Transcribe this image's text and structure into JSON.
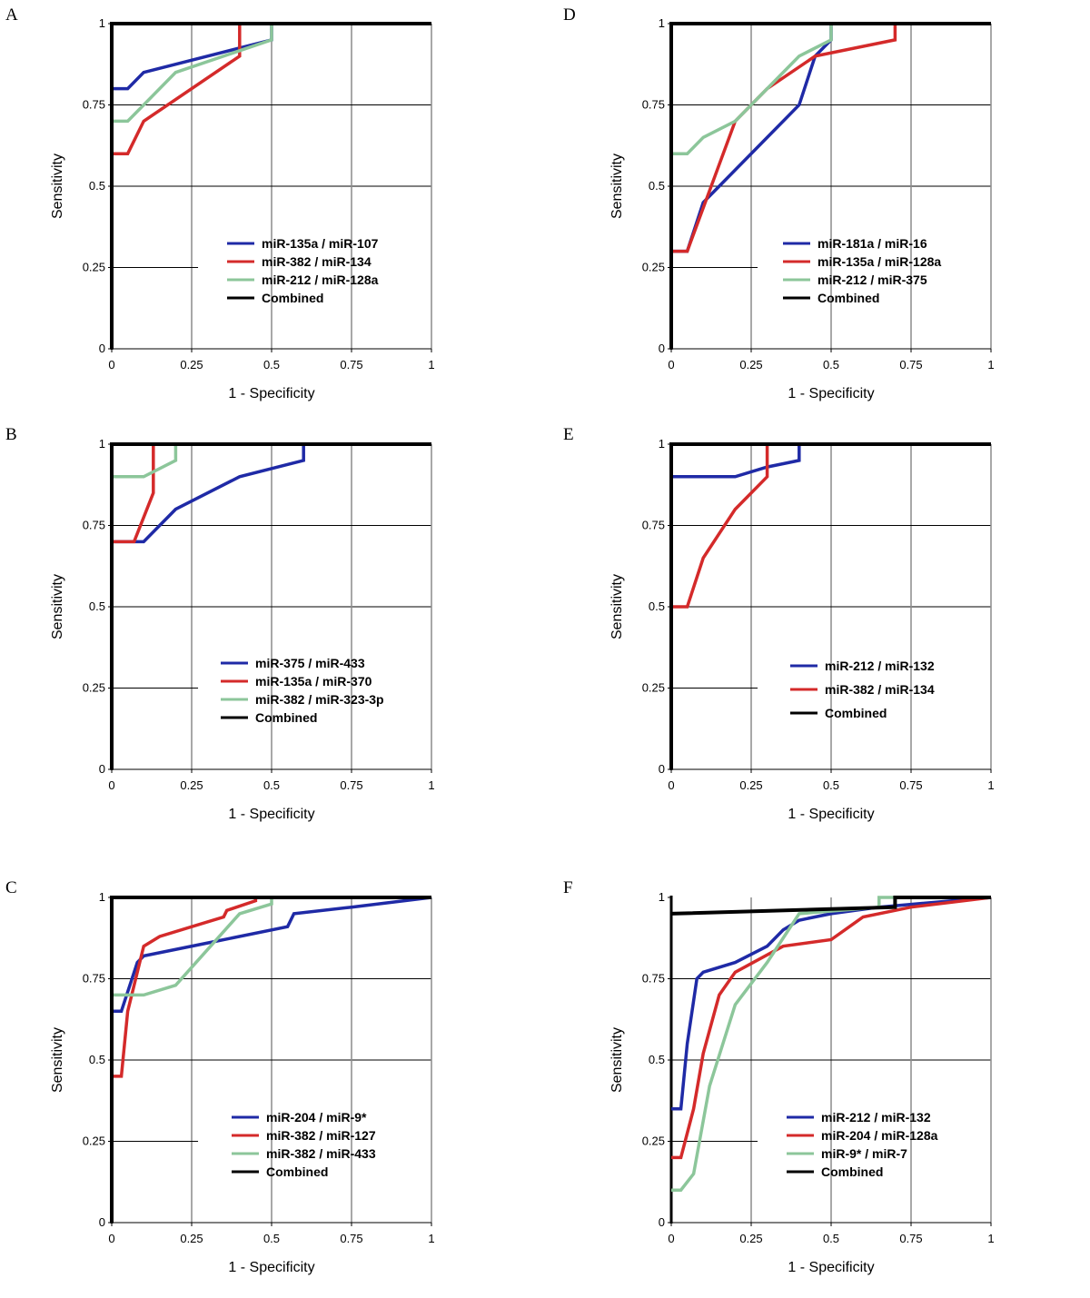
{
  "figure": {
    "colors": {
      "series_1": "#1f2aa6",
      "series_2": "#d42a2a",
      "series_3": "#8cc69a",
      "combined": "#000000",
      "grid": "#000000",
      "minor_grid": "#8c8c8c"
    }
  },
  "chart_data": [
    {
      "panel": "A",
      "type": "line",
      "xlabel": "1 - Specificity",
      "ylabel": "Sensitivity",
      "xlim": [
        0,
        1
      ],
      "ylim": [
        0,
        1
      ],
      "x_ticks": [
        "0",
        "0.25",
        "0.5",
        "0.75",
        "1"
      ],
      "y_ticks": [
        "0",
        "0.25",
        "0.5",
        "0.75",
        "1"
      ],
      "grid": true,
      "legend_position": "lower-right",
      "series": [
        {
          "name": "miR-135a / miR-107",
          "color": "#1f2aa6",
          "points": [
            [
              0,
              0.8
            ],
            [
              0.05,
              0.8
            ],
            [
              0.1,
              0.85
            ],
            [
              0.5,
              0.95
            ],
            [
              0.5,
              1
            ],
            [
              1,
              1
            ]
          ]
        },
        {
          "name": "miR-382 / miR-134",
          "color": "#d42a2a",
          "points": [
            [
              0,
              0.6
            ],
            [
              0.05,
              0.6
            ],
            [
              0.1,
              0.7
            ],
            [
              0.4,
              0.9
            ],
            [
              0.4,
              1
            ],
            [
              1,
              1
            ]
          ]
        },
        {
          "name": "miR-212 / miR-128a",
          "color": "#8cc69a",
          "points": [
            [
              0,
              0.7
            ],
            [
              0.05,
              0.7
            ],
            [
              0.2,
              0.85
            ],
            [
              0.5,
              0.95
            ],
            [
              0.5,
              1
            ],
            [
              1,
              1
            ]
          ]
        },
        {
          "name": "Combined",
          "color": "#000000",
          "points": [
            [
              0,
              0
            ],
            [
              0,
              1
            ],
            [
              1,
              1
            ]
          ]
        }
      ]
    },
    {
      "panel": "B",
      "type": "line",
      "xlabel": "1 - Specificity",
      "ylabel": "Sensitivity",
      "xlim": [
        0,
        1
      ],
      "ylim": [
        0,
        1
      ],
      "x_ticks": [
        "0",
        "0.25",
        "0.5",
        "0.75",
        "1"
      ],
      "y_ticks": [
        "0",
        "0.25",
        "0.5",
        "0.75",
        "1"
      ],
      "grid": true,
      "legend_position": "lower-right",
      "series": [
        {
          "name": "miR-375 / miR-433",
          "color": "#1f2aa6",
          "points": [
            [
              0,
              0.7
            ],
            [
              0.1,
              0.7
            ],
            [
              0.2,
              0.8
            ],
            [
              0.4,
              0.9
            ],
            [
              0.6,
              0.95
            ],
            [
              0.6,
              1
            ],
            [
              1,
              1
            ]
          ]
        },
        {
          "name": "miR-135a / miR-370",
          "color": "#d42a2a",
          "points": [
            [
              0,
              0.7
            ],
            [
              0.07,
              0.7
            ],
            [
              0.13,
              0.85
            ],
            [
              0.13,
              1
            ],
            [
              1,
              1
            ]
          ]
        },
        {
          "name": "miR-382 / miR-323-3p",
          "color": "#8cc69a",
          "points": [
            [
              0,
              0.9
            ],
            [
              0.1,
              0.9
            ],
            [
              0.2,
              0.95
            ],
            [
              0.2,
              1
            ],
            [
              1,
              1
            ]
          ]
        },
        {
          "name": "Combined",
          "color": "#000000",
          "points": [
            [
              0,
              0
            ],
            [
              0,
              1
            ],
            [
              1,
              1
            ]
          ]
        }
      ]
    },
    {
      "panel": "C",
      "type": "line",
      "xlabel": "1 - Specificity",
      "ylabel": "Sensitivity",
      "xlim": [
        0,
        1
      ],
      "ylim": [
        0,
        1
      ],
      "x_ticks": [
        "0",
        "0.25",
        "0.5",
        "0.75",
        "1"
      ],
      "y_ticks": [
        "0",
        "0.25",
        "0.5",
        "0.75",
        "1"
      ],
      "grid": true,
      "legend_position": "lower-right",
      "series": [
        {
          "name": "miR-204 / miR-9*",
          "color": "#1f2aa6",
          "points": [
            [
              0,
              0.65
            ],
            [
              0.03,
              0.65
            ],
            [
              0.08,
              0.8
            ],
            [
              0.1,
              0.82
            ],
            [
              0.3,
              0.86
            ],
            [
              0.55,
              0.91
            ],
            [
              0.57,
              0.95
            ],
            [
              0.75,
              0.97
            ],
            [
              1,
              1
            ]
          ]
        },
        {
          "name": "miR-382 / miR-127",
          "color": "#d42a2a",
          "points": [
            [
              0,
              0.45
            ],
            [
              0.03,
              0.45
            ],
            [
              0.05,
              0.65
            ],
            [
              0.1,
              0.85
            ],
            [
              0.15,
              0.88
            ],
            [
              0.35,
              0.94
            ],
            [
              0.36,
              0.96
            ],
            [
              0.45,
              0.99
            ],
            [
              0.45,
              1
            ],
            [
              1,
              1
            ]
          ]
        },
        {
          "name": "miR-382 / miR-433",
          "color": "#8cc69a",
          "points": [
            [
              0,
              0.7
            ],
            [
              0.1,
              0.7
            ],
            [
              0.2,
              0.73
            ],
            [
              0.3,
              0.84
            ],
            [
              0.4,
              0.95
            ],
            [
              0.5,
              0.98
            ],
            [
              0.5,
              1
            ],
            [
              1,
              1
            ]
          ]
        },
        {
          "name": "Combined",
          "color": "#000000",
          "points": [
            [
              0,
              0
            ],
            [
              0,
              1
            ],
            [
              1,
              1
            ]
          ]
        }
      ]
    },
    {
      "panel": "D",
      "type": "line",
      "xlabel": "1 - Specificity",
      "ylabel": "Sensitivity",
      "xlim": [
        0,
        1
      ],
      "ylim": [
        0,
        1
      ],
      "x_ticks": [
        "0",
        "0.25",
        "0.5",
        "0.75",
        "1"
      ],
      "y_ticks": [
        "0",
        "0.25",
        "0.5",
        "0.75",
        "1"
      ],
      "grid": true,
      "legend_position": "lower-right",
      "series": [
        {
          "name": "miR-181a / miR-16",
          "color": "#1f2aa6",
          "points": [
            [
              0,
              0.3
            ],
            [
              0.05,
              0.3
            ],
            [
              0.1,
              0.45
            ],
            [
              0.15,
              0.5
            ],
            [
              0.4,
              0.75
            ],
            [
              0.45,
              0.9
            ],
            [
              0.5,
              0.95
            ],
            [
              0.5,
              1
            ],
            [
              1,
              1
            ]
          ]
        },
        {
          "name": "miR-135a / miR-128a",
          "color": "#d42a2a",
          "points": [
            [
              0,
              0.3
            ],
            [
              0.05,
              0.3
            ],
            [
              0.2,
              0.7
            ],
            [
              0.3,
              0.8
            ],
            [
              0.45,
              0.9
            ],
            [
              0.7,
              0.95
            ],
            [
              0.7,
              1
            ],
            [
              1,
              1
            ]
          ]
        },
        {
          "name": "miR-212 / miR-375",
          "color": "#8cc69a",
          "points": [
            [
              0,
              0.6
            ],
            [
              0.05,
              0.6
            ],
            [
              0.1,
              0.65
            ],
            [
              0.2,
              0.7
            ],
            [
              0.3,
              0.8
            ],
            [
              0.4,
              0.9
            ],
            [
              0.5,
              0.95
            ],
            [
              0.5,
              1
            ],
            [
              1,
              1
            ]
          ]
        },
        {
          "name": "Combined",
          "color": "#000000",
          "points": [
            [
              0,
              0
            ],
            [
              0,
              1
            ],
            [
              1,
              1
            ]
          ]
        }
      ]
    },
    {
      "panel": "E",
      "type": "line",
      "xlabel": "1 - Specificity",
      "ylabel": "Sensitivity",
      "xlim": [
        0,
        1
      ],
      "ylim": [
        0,
        1
      ],
      "x_ticks": [
        "0",
        "0.25",
        "0.5",
        "0.75",
        "1"
      ],
      "y_ticks": [
        "0",
        "0.25",
        "0.5",
        "0.75",
        "1"
      ],
      "grid": true,
      "legend_position": "lower-right",
      "series": [
        {
          "name": "miR-212 / miR-132",
          "color": "#1f2aa6",
          "points": [
            [
              0,
              0.9
            ],
            [
              0.2,
              0.9
            ],
            [
              0.3,
              0.93
            ],
            [
              0.4,
              0.95
            ],
            [
              0.4,
              1
            ],
            [
              1,
              1
            ]
          ]
        },
        {
          "name": "miR-382 / miR-134",
          "color": "#d42a2a",
          "points": [
            [
              0,
              0.5
            ],
            [
              0.05,
              0.5
            ],
            [
              0.1,
              0.65
            ],
            [
              0.2,
              0.8
            ],
            [
              0.3,
              0.9
            ],
            [
              0.3,
              1
            ],
            [
              1,
              1
            ]
          ]
        },
        {
          "name": "Combined",
          "color": "#000000",
          "points": [
            [
              0,
              0
            ],
            [
              0,
              1
            ],
            [
              1,
              1
            ]
          ]
        }
      ]
    },
    {
      "panel": "F",
      "type": "line",
      "xlabel": "1 - Specificity",
      "ylabel": "Sensitivity",
      "xlim": [
        0,
        1
      ],
      "ylim": [
        0,
        1
      ],
      "x_ticks": [
        "0",
        "0.25",
        "0.5",
        "0.75",
        "1"
      ],
      "y_ticks": [
        "0",
        "0.25",
        "0.5",
        "0.75",
        "1"
      ],
      "grid": true,
      "legend_position": "lower-right",
      "series": [
        {
          "name": "miR-212 / miR-132",
          "color": "#1f2aa6",
          "points": [
            [
              0,
              0.35
            ],
            [
              0.03,
              0.35
            ],
            [
              0.05,
              0.55
            ],
            [
              0.08,
              0.75
            ],
            [
              0.1,
              0.77
            ],
            [
              0.2,
              0.8
            ],
            [
              0.3,
              0.85
            ],
            [
              0.35,
              0.9
            ],
            [
              0.4,
              0.93
            ],
            [
              0.5,
              0.95
            ],
            [
              0.65,
              0.97
            ],
            [
              1,
              1
            ]
          ]
        },
        {
          "name": "miR-204 / miR-128a",
          "color": "#d42a2a",
          "points": [
            [
              0,
              0.2
            ],
            [
              0.03,
              0.2
            ],
            [
              0.07,
              0.35
            ],
            [
              0.1,
              0.52
            ],
            [
              0.15,
              0.7
            ],
            [
              0.2,
              0.77
            ],
            [
              0.35,
              0.85
            ],
            [
              0.5,
              0.87
            ],
            [
              0.6,
              0.94
            ],
            [
              0.75,
              0.97
            ],
            [
              1,
              1
            ]
          ]
        },
        {
          "name": "miR-9* / miR-7",
          "color": "#8cc69a",
          "points": [
            [
              0,
              0.1
            ],
            [
              0.03,
              0.1
            ],
            [
              0.07,
              0.15
            ],
            [
              0.12,
              0.42
            ],
            [
              0.2,
              0.67
            ],
            [
              0.3,
              0.8
            ],
            [
              0.4,
              0.95
            ],
            [
              0.65,
              0.97
            ],
            [
              0.65,
              1
            ],
            [
              1,
              1
            ]
          ]
        },
        {
          "name": "Combined",
          "color": "#000000",
          "points": [
            [
              0,
              0.95
            ],
            [
              0.7,
              0.97
            ],
            [
              0.7,
              1
            ],
            [
              1,
              1
            ]
          ]
        }
      ]
    }
  ]
}
